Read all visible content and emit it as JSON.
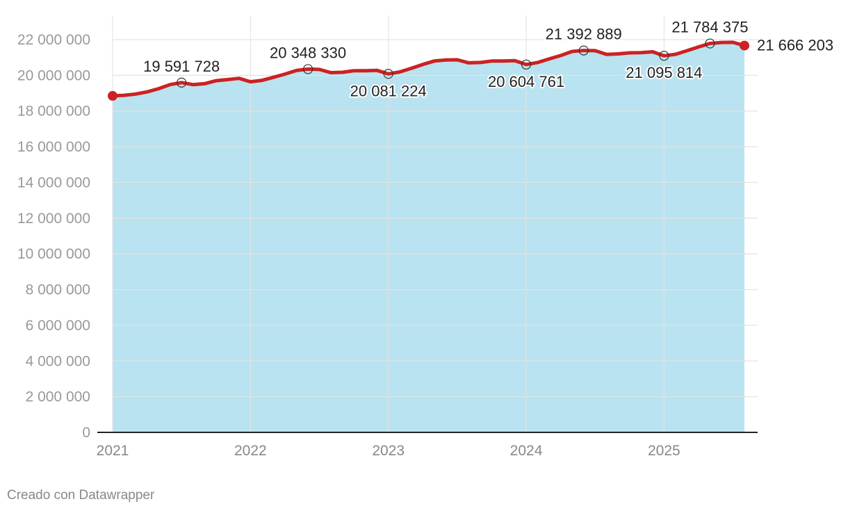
{
  "chart_data": {
    "type": "area",
    "title": "",
    "xlabel": "",
    "ylabel": "",
    "ylim": [
      0,
      22000000
    ],
    "yticks": [
      0,
      2000000,
      4000000,
      6000000,
      8000000,
      10000000,
      12000000,
      14000000,
      16000000,
      18000000,
      20000000,
      22000000
    ],
    "ytick_labels": [
      "0",
      "2 000 000",
      "4 000 000",
      "6 000 000",
      "8 000 000",
      "10 000 000",
      "12 000 000",
      "14 000 000",
      "16 000 000",
      "18 000 000",
      "20 000 000",
      "22 000 000"
    ],
    "xticks": [
      2021,
      2022,
      2023,
      2024,
      2025
    ],
    "xtick_labels": [
      "2021",
      "2022",
      "2023",
      "2024",
      "2025"
    ],
    "grid": true,
    "legend": "none",
    "colors": {
      "line": "#cc2222",
      "area": "#b9e3f0",
      "grid": "#e3e3e3"
    },
    "series": [
      {
        "x": [
          2021.0,
          2021.083,
          2021.167,
          2021.25,
          2021.333,
          2021.417,
          2021.5,
          2021.583,
          2021.667,
          2021.75,
          2021.833,
          2021.917,
          2022.0,
          2022.083,
          2022.167,
          2022.25,
          2022.333,
          2022.417,
          2022.5,
          2022.583,
          2022.667,
          2022.75,
          2022.833,
          2022.917,
          2023.0,
          2023.083,
          2023.167,
          2023.25,
          2023.333,
          2023.417,
          2023.5,
          2023.583,
          2023.667,
          2023.75,
          2023.833,
          2023.917,
          2024.0,
          2024.083,
          2024.167,
          2024.25,
          2024.333,
          2024.417,
          2024.5,
          2024.583,
          2024.667,
          2024.75,
          2024.833,
          2024.917,
          2025.0,
          2025.083,
          2025.167,
          2025.25,
          2025.333,
          2025.417,
          2025.5,
          2025.583
        ],
        "values": [
          18850000,
          18880000,
          18950000,
          19070000,
          19250000,
          19480000,
          19591728,
          19480000,
          19530000,
          19700000,
          19760000,
          19830000,
          19640000,
          19720000,
          19890000,
          20070000,
          20270000,
          20348330,
          20330000,
          20150000,
          20170000,
          20260000,
          20260000,
          20280000,
          20081224,
          20190000,
          20390000,
          20610000,
          20800000,
          20860000,
          20870000,
          20700000,
          20720000,
          20800000,
          20800000,
          20820000,
          20604761,
          20720000,
          20920000,
          21110000,
          21340000,
          21392889,
          21380000,
          21170000,
          21200000,
          21260000,
          21270000,
          21320000,
          21095814,
          21180000,
          21380000,
          21590000,
          21784375,
          21840000,
          21850000,
          21666203
        ]
      }
    ],
    "annotations": [
      {
        "x": 2021.5,
        "y": 19591728,
        "text": "19 591 728",
        "pos": "above"
      },
      {
        "x": 2022.417,
        "y": 20348330,
        "text": "20 348 330",
        "pos": "above"
      },
      {
        "x": 2023.0,
        "y": 20081224,
        "text": "20 081 224",
        "pos": "below"
      },
      {
        "x": 2024.0,
        "y": 20604761,
        "text": "20 604 761",
        "pos": "below"
      },
      {
        "x": 2024.417,
        "y": 21392889,
        "text": "21 392 889",
        "pos": "above"
      },
      {
        "x": 2025.0,
        "y": 21095814,
        "text": "21 095 814",
        "pos": "below"
      },
      {
        "x": 2025.333,
        "y": 21784375,
        "text": "21 784 375",
        "pos": "above"
      }
    ],
    "end_label": "21 666 203"
  },
  "footer": {
    "credit": "Creado con Datawrapper"
  }
}
